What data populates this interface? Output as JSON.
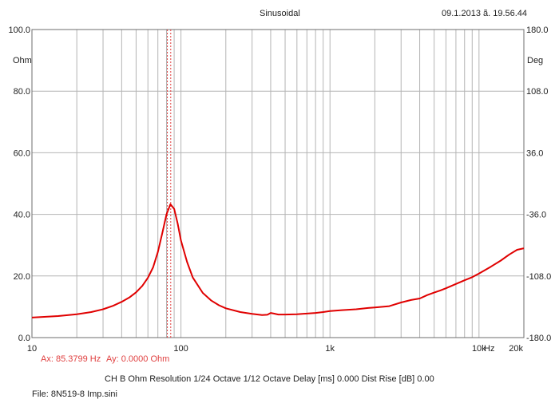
{
  "header": {
    "title": "Sinusoidal",
    "timestamp": "09.1.2013 ã. 19.56.44"
  },
  "status": {
    "cursor_x": "Ax: 85.3799 Hz",
    "cursor_y": "Ay: 0.0000 Ohm",
    "info": "CH B   Ohm   Resolution 1/24 Octave   1/12 Octave   Delay [ms] 0.000   Dist Rise [dB] 0.00",
    "file": "File: 8N519-8 Imp.sini"
  },
  "colors": {
    "curve": "#e00000",
    "cursor": "#e04040",
    "grid": "#b4b4b4",
    "frame": "#6e6e6e"
  },
  "chart_data": {
    "type": "line",
    "x_scale": "log",
    "xlim": [
      10,
      20000
    ],
    "ylim": [
      0,
      100
    ],
    "y2lim": [
      -180,
      180
    ],
    "grid": true,
    "x_tick_labels": [
      {
        "value": 10,
        "label": "10"
      },
      {
        "value": 100,
        "label": "100"
      },
      {
        "value": 1000,
        "label": "1k"
      },
      {
        "value": 10000,
        "label": "10k"
      },
      {
        "value": 20000,
        "label": "20k"
      }
    ],
    "x_unit": "Hz",
    "y_tick_labels": [
      {
        "value": 100,
        "label": "100.0"
      },
      {
        "value": 80,
        "label": "80.0"
      },
      {
        "value": 60,
        "label": "60.0"
      },
      {
        "value": 40,
        "label": "40.0"
      },
      {
        "value": 20,
        "label": "20.0"
      },
      {
        "value": 0,
        "label": "0.0"
      }
    ],
    "y_unit": "Ohm",
    "y2_tick_labels": [
      {
        "value": 180,
        "label": "180.0"
      },
      {
        "value": 108,
        "label": "108.0"
      },
      {
        "value": 36,
        "label": "36.0"
      },
      {
        "value": -36,
        "label": "-36.0"
      },
      {
        "value": -108,
        "label": "-108.0"
      },
      {
        "value": -180,
        "label": "-180.0"
      }
    ],
    "y2_unit": "Deg",
    "cursor_lines_x": [
      81,
      85.38
    ],
    "series": [
      {
        "points": [
          [
            10,
            6.5
          ],
          [
            15,
            7.0
          ],
          [
            20,
            7.6
          ],
          [
            25,
            8.3
          ],
          [
            30,
            9.2
          ],
          [
            35,
            10.3
          ],
          [
            40,
            11.6
          ],
          [
            45,
            13.0
          ],
          [
            50,
            14.7
          ],
          [
            55,
            16.8
          ],
          [
            60,
            19.4
          ],
          [
            65,
            22.8
          ],
          [
            70,
            27.8
          ],
          [
            75,
            34.0
          ],
          [
            80,
            40.0
          ],
          [
            85,
            43.3
          ],
          [
            90,
            41.8
          ],
          [
            95,
            37.0
          ],
          [
            100,
            31.5
          ],
          [
            110,
            24.5
          ],
          [
            120,
            19.5
          ],
          [
            140,
            14.5
          ],
          [
            160,
            12.0
          ],
          [
            180,
            10.5
          ],
          [
            200,
            9.5
          ],
          [
            250,
            8.3
          ],
          [
            300,
            7.7
          ],
          [
            350,
            7.3
          ],
          [
            380,
            7.4
          ],
          [
            400,
            8.0
          ],
          [
            420,
            7.8
          ],
          [
            450,
            7.5
          ],
          [
            500,
            7.5
          ],
          [
            600,
            7.6
          ],
          [
            700,
            7.8
          ],
          [
            800,
            8.0
          ],
          [
            900,
            8.3
          ],
          [
            1000,
            8.6
          ],
          [
            1200,
            8.9
          ],
          [
            1500,
            9.2
          ],
          [
            1800,
            9.6
          ],
          [
            2000,
            9.8
          ],
          [
            2500,
            10.2
          ],
          [
            3000,
            11.4
          ],
          [
            3500,
            12.2
          ],
          [
            4000,
            12.7
          ],
          [
            4500,
            13.8
          ],
          [
            5000,
            14.6
          ],
          [
            5500,
            15.3
          ],
          [
            6000,
            16.0
          ],
          [
            7000,
            17.4
          ],
          [
            8000,
            18.6
          ],
          [
            9000,
            19.6
          ],
          [
            10000,
            20.8
          ],
          [
            12000,
            23.0
          ],
          [
            14000,
            25.0
          ],
          [
            16000,
            27.0
          ],
          [
            18000,
            28.5
          ],
          [
            20000,
            29.0
          ]
        ]
      }
    ]
  }
}
